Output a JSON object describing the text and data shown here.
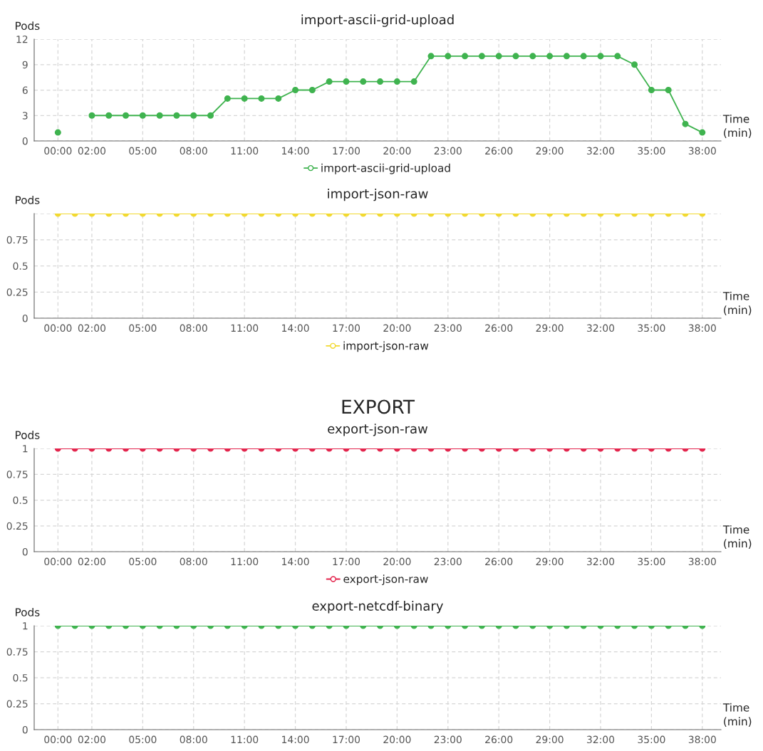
{
  "chart_data": [
    {
      "type": "line",
      "title": "import-ascii-grid-upload",
      "ylabel": "Pods",
      "xlabel": "Time\n(min)",
      "x": [
        0,
        1,
        2,
        3,
        4,
        5,
        6,
        7,
        8,
        9,
        10,
        11,
        12,
        13,
        14,
        15,
        16,
        17,
        18,
        19,
        20,
        21,
        22,
        23,
        24,
        25,
        26,
        27,
        28,
        29,
        30,
        31,
        32,
        33,
        34,
        35,
        36,
        37,
        38
      ],
      "series": [
        {
          "name": "import-ascii-grid-upload",
          "color": "#3fb34f",
          "values": [
            1,
            null,
            3,
            3,
            3,
            3,
            3,
            3,
            3,
            3,
            5,
            5,
            5,
            5,
            6,
            6,
            7,
            7,
            7,
            7,
            7,
            7,
            10,
            10,
            10,
            10,
            10,
            10,
            10,
            10,
            10,
            10,
            10,
            10,
            9,
            6,
            6,
            2,
            1
          ]
        }
      ],
      "xlim": [
        -1.4,
        39.1
      ],
      "xticks": [
        {
          "value": 0,
          "label": "00:00"
        },
        {
          "value": 2,
          "label": "02:00"
        },
        {
          "value": 5,
          "label": "05:00"
        },
        {
          "value": 8,
          "label": "08:00"
        },
        {
          "value": 11,
          "label": "11:00"
        },
        {
          "value": 14,
          "label": "14:00"
        },
        {
          "value": 17,
          "label": "17:00"
        },
        {
          "value": 20,
          "label": "20:00"
        },
        {
          "value": 23,
          "label": "23:00"
        },
        {
          "value": 26,
          "label": "26:00"
        },
        {
          "value": 29,
          "label": "29:00"
        },
        {
          "value": 32,
          "label": "32:00"
        },
        {
          "value": 35,
          "label": "35:00"
        },
        {
          "value": 38,
          "label": "38:00"
        }
      ],
      "ylim": [
        0,
        12
      ],
      "yticks": [
        0,
        3,
        6,
        9,
        12
      ],
      "grid": true,
      "legend": "bottom",
      "marker": "circle",
      "line_style": "solid"
    },
    {
      "type": "line",
      "title": "import-json-raw",
      "ylabel": "Pods",
      "xlabel": "Time\n(min)",
      "x": [
        0,
        1,
        2,
        3,
        4,
        5,
        6,
        7,
        8,
        9,
        10,
        11,
        12,
        13,
        14,
        15,
        16,
        17,
        18,
        19,
        20,
        21,
        22,
        23,
        24,
        25,
        26,
        27,
        28,
        29,
        30,
        31,
        32,
        33,
        34,
        35,
        36,
        37,
        38
      ],
      "series": [
        {
          "name": "import-json-raw",
          "color": "#f2d930",
          "values": [
            1,
            1,
            1,
            1,
            1,
            1,
            1,
            1,
            1,
            1,
            1,
            1,
            1,
            1,
            1,
            1,
            1,
            1,
            1,
            1,
            1,
            1,
            1,
            1,
            1,
            1,
            1,
            1,
            1,
            1,
            1,
            1,
            1,
            1,
            1,
            1,
            1,
            1,
            1
          ]
        }
      ],
      "xlim": [
        -1.4,
        39.1
      ],
      "xticks": [
        {
          "value": 0,
          "label": "00:00"
        },
        {
          "value": 2,
          "label": "02:00"
        },
        {
          "value": 5,
          "label": "05:00"
        },
        {
          "value": 8,
          "label": "08:00"
        },
        {
          "value": 11,
          "label": "11:00"
        },
        {
          "value": 14,
          "label": "14:00"
        },
        {
          "value": 17,
          "label": "17:00"
        },
        {
          "value": 20,
          "label": "20:00"
        },
        {
          "value": 23,
          "label": "23:00"
        },
        {
          "value": 26,
          "label": "26:00"
        },
        {
          "value": 29,
          "label": "29:00"
        },
        {
          "value": 32,
          "label": "32:00"
        },
        {
          "value": 35,
          "label": "35:00"
        },
        {
          "value": 38,
          "label": "38:00"
        }
      ],
      "ylim": [
        0,
        1
      ],
      "yticks": [
        0,
        0.25,
        0.5,
        0.75,
        {
          "value": 1,
          "label": null
        }
      ],
      "grid": true,
      "legend": "bottom",
      "marker": "circle",
      "line_style": "solid"
    },
    {
      "type": "line",
      "title": "EXPORT",
      "subtitle": "export-json-raw",
      "ylabel": "Pods",
      "xlabel": "Time\n(min)",
      "x": [
        0,
        1,
        2,
        3,
        4,
        5,
        6,
        7,
        8,
        9,
        10,
        11,
        12,
        13,
        14,
        15,
        16,
        17,
        18,
        19,
        20,
        21,
        22,
        23,
        24,
        25,
        26,
        27,
        28,
        29,
        30,
        31,
        32,
        33,
        34,
        35,
        36,
        37,
        38
      ],
      "series": [
        {
          "name": "export-json-raw",
          "color": "#e3244c",
          "values": [
            1,
            1,
            1,
            1,
            1,
            1,
            1,
            1,
            1,
            1,
            1,
            1,
            1,
            1,
            1,
            1,
            1,
            1,
            1,
            1,
            1,
            1,
            1,
            1,
            1,
            1,
            1,
            1,
            1,
            1,
            1,
            1,
            1,
            1,
            1,
            1,
            1,
            1,
            1
          ]
        }
      ],
      "xlim": [
        -1.4,
        39.1
      ],
      "xticks": [
        {
          "value": 0,
          "label": "00:00"
        },
        {
          "value": 2,
          "label": "02:00"
        },
        {
          "value": 5,
          "label": "05:00"
        },
        {
          "value": 8,
          "label": "08:00"
        },
        {
          "value": 11,
          "label": "11:00"
        },
        {
          "value": 14,
          "label": "14:00"
        },
        {
          "value": 17,
          "label": "17:00"
        },
        {
          "value": 20,
          "label": "20:00"
        },
        {
          "value": 23,
          "label": "23:00"
        },
        {
          "value": 26,
          "label": "26:00"
        },
        {
          "value": 29,
          "label": "29:00"
        },
        {
          "value": 32,
          "label": "32:00"
        },
        {
          "value": 35,
          "label": "35:00"
        },
        {
          "value": 38,
          "label": "38:00"
        }
      ],
      "ylim": [
        0,
        1
      ],
      "yticks": [
        0,
        0.25,
        0.5,
        0.75,
        1
      ],
      "grid": true,
      "legend": "bottom",
      "marker": "circle",
      "line_style": "solid"
    },
    {
      "type": "line",
      "title": "export-netcdf-binary",
      "ylabel": "Pods",
      "xlabel": "Time\n(min)",
      "x": [
        0,
        1,
        2,
        3,
        4,
        5,
        6,
        7,
        8,
        9,
        10,
        11,
        12,
        13,
        14,
        15,
        16,
        17,
        18,
        19,
        20,
        21,
        22,
        23,
        24,
        25,
        26,
        27,
        28,
        29,
        30,
        31,
        32,
        33,
        34,
        35,
        36,
        37,
        38
      ],
      "series": [
        {
          "color": "#3fb34f",
          "values": [
            1,
            1,
            1,
            1,
            1,
            1,
            1,
            1,
            1,
            1,
            1,
            1,
            1,
            1,
            1,
            1,
            1,
            1,
            1,
            1,
            1,
            1,
            1,
            1,
            1,
            1,
            1,
            1,
            1,
            1,
            1,
            1,
            1,
            1,
            1,
            1,
            1,
            1,
            1
          ]
        }
      ],
      "xlim": [
        -1.4,
        39.1
      ],
      "xticks": [
        {
          "value": 0,
          "label": "00:00"
        },
        {
          "value": 2,
          "label": "02:00"
        },
        {
          "value": 5,
          "label": "05:00"
        },
        {
          "value": 8,
          "label": "08:00"
        },
        {
          "value": 11,
          "label": "11:00"
        },
        {
          "value": 14,
          "label": "14:00"
        },
        {
          "value": 17,
          "label": "17:00"
        },
        {
          "value": 20,
          "label": "20:00"
        },
        {
          "value": 23,
          "label": "23:00"
        },
        {
          "value": 26,
          "label": "26:00"
        },
        {
          "value": 29,
          "label": "29:00"
        },
        {
          "value": 32,
          "label": "32:00"
        },
        {
          "value": 35,
          "label": "35:00"
        },
        {
          "value": 38,
          "label": "38:00"
        }
      ],
      "ylim": [
        0,
        1
      ],
      "yticks": [
        0,
        0.25,
        0.5,
        0.75,
        1
      ],
      "grid": true,
      "marker": "circle",
      "line_style": "solid"
    }
  ]
}
